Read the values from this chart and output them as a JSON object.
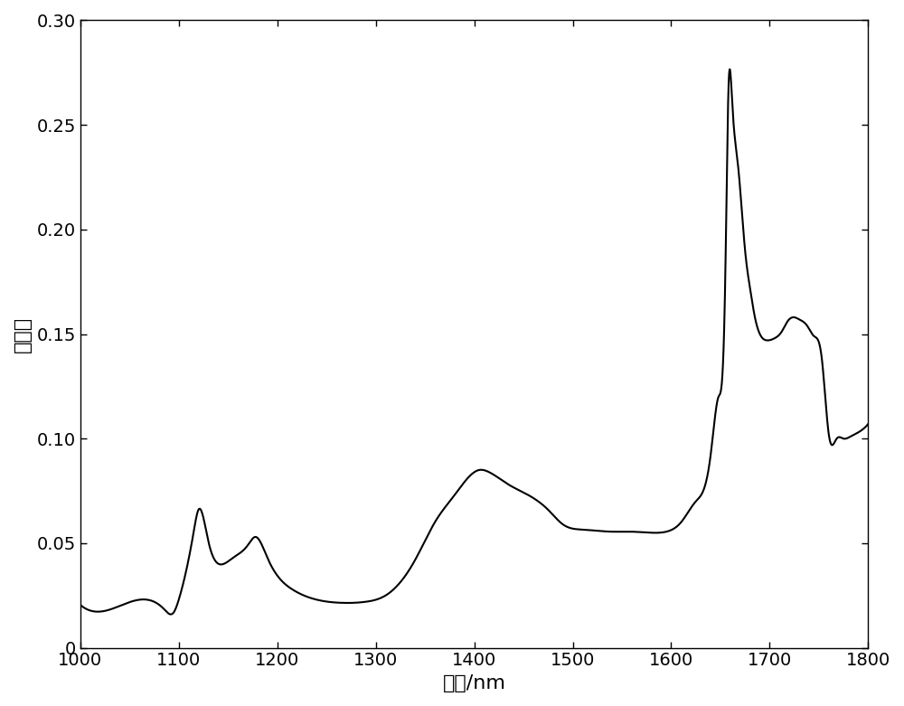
{
  "title": "",
  "xlabel": "波长/nm",
  "ylabel": "反射率",
  "xlim": [
    1000,
    1800
  ],
  "ylim": [
    0,
    0.3
  ],
  "xticks": [
    1000,
    1100,
    1200,
    1300,
    1400,
    1500,
    1600,
    1700,
    1800
  ],
  "yticks": [
    0,
    0.05,
    0.1,
    0.15,
    0.2,
    0.25,
    0.3
  ],
  "ytick_labels": [
    "0",
    "0.05",
    "0.10",
    "0.15",
    "0.20",
    "0.25",
    "0.30"
  ],
  "line_color": "#000000",
  "line_width": 1.5,
  "background_color": "#ffffff",
  "xlabel_fontsize": 16,
  "ylabel_fontsize": 16,
  "tick_fontsize": 14
}
